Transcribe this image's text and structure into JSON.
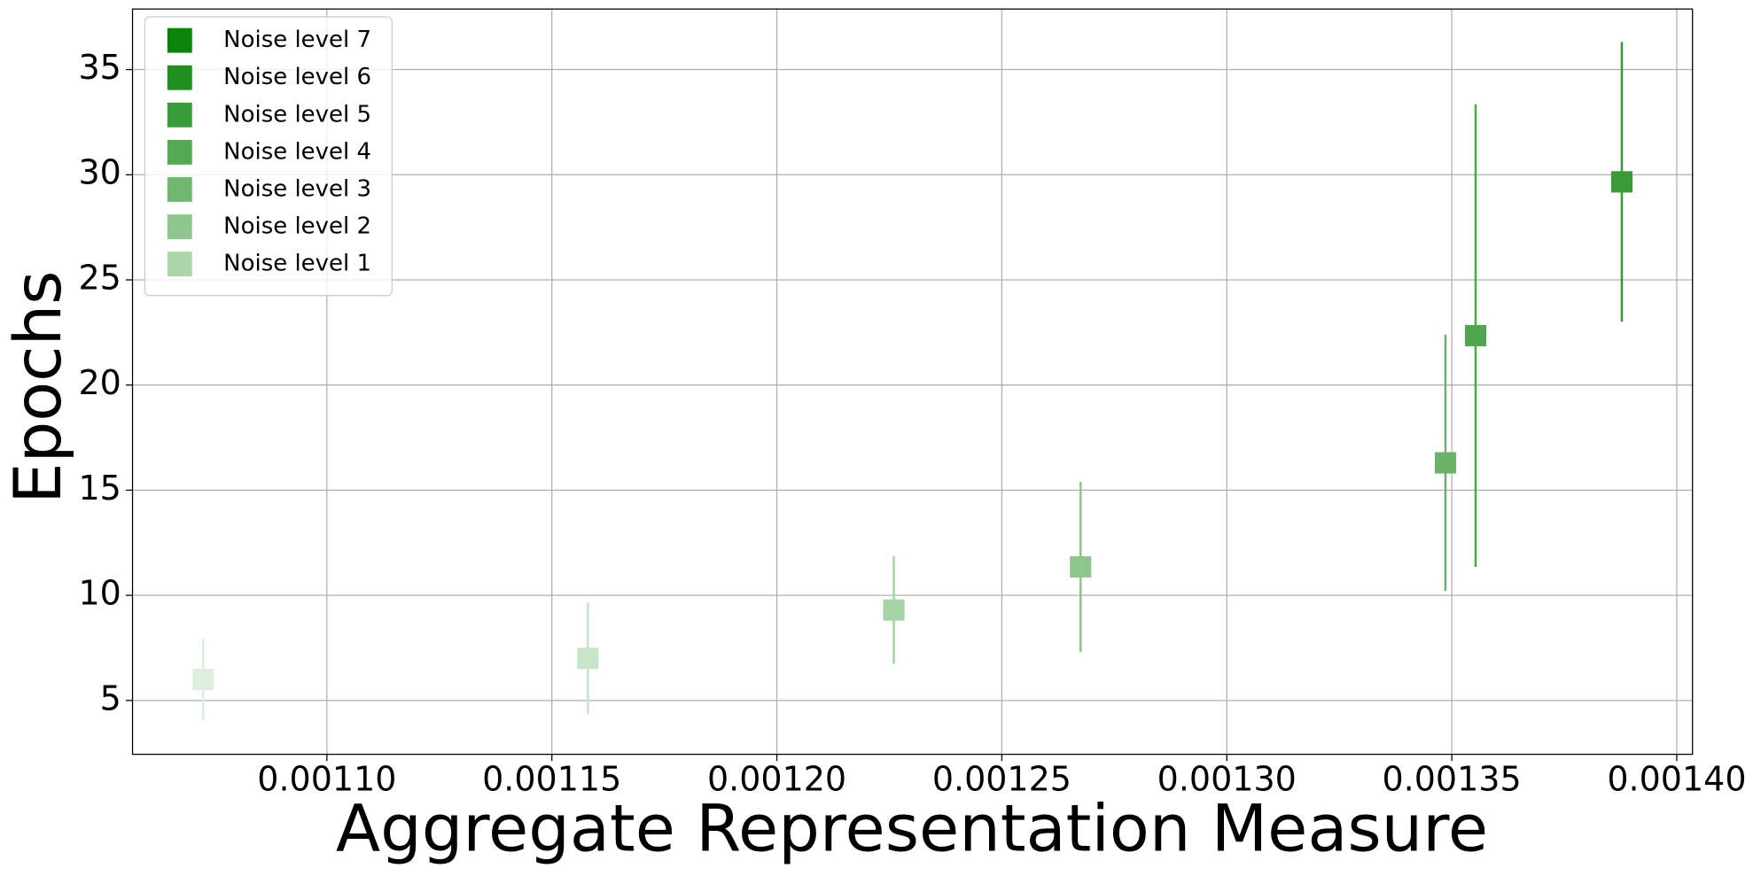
{
  "chart_data": {
    "type": "scatter",
    "x_label": "Aggregate Representation Measure",
    "y_label": "Epochs",
    "xlim": [
      0.0010568,
      0.0014035
    ],
    "ylim": [
      2.44,
      37.88
    ],
    "xticks": [
      {
        "value": 0.0011,
        "label": "0.00110"
      },
      {
        "value": 0.00115,
        "label": "0.00115"
      },
      {
        "value": 0.0012,
        "label": "0.00120"
      },
      {
        "value": 0.00125,
        "label": "0.00125"
      },
      {
        "value": 0.0013,
        "label": "0.00130"
      },
      {
        "value": 0.00135,
        "label": "0.00135"
      },
      {
        "value": 0.0014,
        "label": "0.00140"
      }
    ],
    "yticks": [
      5,
      10,
      15,
      20,
      25,
      30,
      35
    ],
    "grid": true,
    "legend": "upper left",
    "series": [
      {
        "name": "Noise level 7",
        "color": "#0a830a",
        "marker_color": "#3a9a3a",
        "x": [
          0.0013878
        ],
        "values": [
          29.66
        ],
        "errors": [
          6.65
        ]
      },
      {
        "name": "Noise level 6",
        "color": "#1f8f1f",
        "marker_color": "#4ea64e",
        "x": [
          0.0013553
        ],
        "values": [
          22.35
        ],
        "errors": [
          11.0
        ]
      },
      {
        "name": "Noise level 5",
        "color": "#379c37",
        "marker_color": "#6bb36b",
        "x": [
          0.0013486
        ],
        "values": [
          16.3
        ],
        "errors": [
          6.1
        ]
      },
      {
        "name": "Noise level 4",
        "color": "#53aa53",
        "marker_color": "#8dc58d",
        "x": [
          0.0012675
        ],
        "values": [
          11.35
        ],
        "errors": [
          4.05
        ]
      },
      {
        "name": "Noise level 3",
        "color": "#70b870",
        "marker_color": "#a5d3a5",
        "x": [
          0.001226
        ],
        "values": [
          9.3
        ],
        "errors": [
          2.55
        ]
      },
      {
        "name": "Noise level 2",
        "color": "#8dc78d",
        "marker_color": "#c8e4c8",
        "x": [
          0.001158
        ],
        "values": [
          7.0
        ],
        "errors": [
          2.65
        ]
      },
      {
        "name": "Noise level 1",
        "color": "#aad6aa",
        "marker_color": "#dcefdc",
        "x": [
          0.0010725
        ],
        "values": [
          6.0
        ],
        "errors": [
          1.95
        ]
      }
    ]
  }
}
